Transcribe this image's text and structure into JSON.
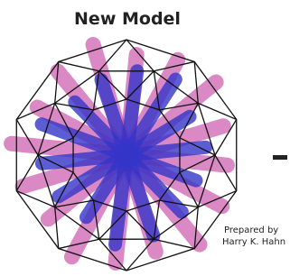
{
  "header": {
    "title": "New Model"
  },
  "credit": {
    "line1": "Prepared by",
    "line2": "Harry K. Hahn"
  }
}
